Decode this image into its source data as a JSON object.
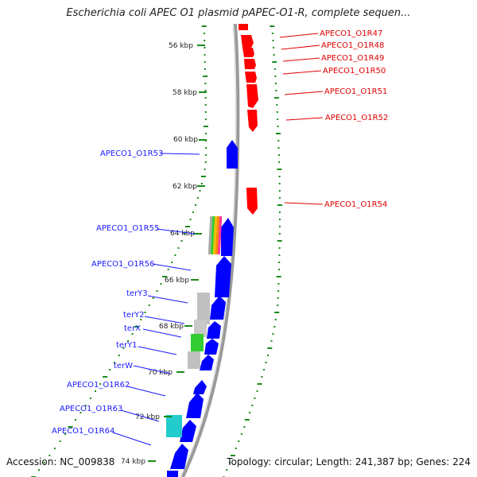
{
  "title": "Escherichia coli APEC O1 plasmid pAPEC-O1-R, complete sequen...",
  "footer": {
    "accession": "Accession: NC_009838",
    "summary": "Topology: circular; Length: 241,387 bp; Genes: 224"
  },
  "ticks": [
    "56 kbp",
    "58 kbp",
    "60 kbp",
    "62 kbp",
    "64 kbp",
    "66 kbp",
    "68 kbp",
    "70 kbp",
    "72 kbp",
    "74 kbp"
  ],
  "genes_forward": [
    "APECO1_O1R47",
    "APECO1_O1R48",
    "APECO1_O1R49",
    "APECO1_O1R50",
    "APECO1_O1R51",
    "APECO1_O1R52",
    "APECO1_O1R54"
  ],
  "genes_reverse": [
    "APECO1_O1R53",
    "APECO1_O1R55",
    "APECO1_O1R56",
    "terY3",
    "terY2",
    "terX",
    "terY1",
    "terW",
    "APECO1_O1R62",
    "APECO1_O1R63",
    "APECO1_O1R64"
  ],
  "colors": {
    "forward_cds": "#ff0000",
    "reverse_cds": "#0000ff",
    "backbone": "#888888",
    "gc_marks": "#1a8a1a",
    "gray_feature": "#c0c0c0",
    "green_feature": "#33cc33",
    "cyan_feature": "#22cccc"
  }
}
